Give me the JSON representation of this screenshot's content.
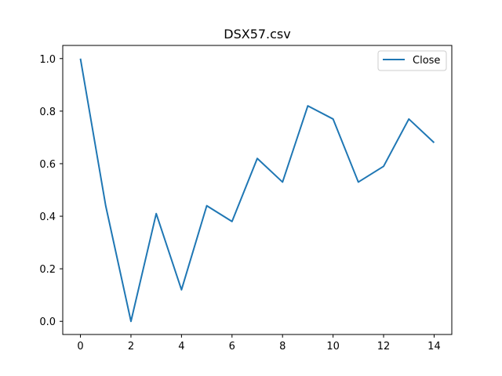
{
  "chart_data": {
    "type": "line",
    "title": "DSX57.csv",
    "xlabel": "",
    "ylabel": "",
    "x": [
      0,
      1,
      2,
      3,
      4,
      5,
      6,
      7,
      8,
      9,
      10,
      11,
      12,
      13,
      14
    ],
    "series": [
      {
        "name": "Close",
        "color": "#1f77b4",
        "values": [
          1.0,
          0.44,
          0.0,
          0.41,
          0.12,
          0.44,
          0.38,
          0.62,
          0.53,
          0.82,
          0.77,
          0.53,
          0.59,
          0.77,
          0.68
        ]
      }
    ],
    "xlim": [
      -0.7,
      14.7
    ],
    "ylim": [
      -0.05,
      1.05
    ],
    "xticks": [
      0,
      2,
      4,
      6,
      8,
      10,
      12,
      14
    ],
    "xtick_labels": [
      "0",
      "2",
      "4",
      "6",
      "8",
      "10",
      "12",
      "14"
    ],
    "yticks": [
      0.0,
      0.2,
      0.4,
      0.6,
      0.8,
      1.0
    ],
    "ytick_labels": [
      "0.0",
      "0.2",
      "0.4",
      "0.6",
      "0.8",
      "1.0"
    ],
    "grid": false,
    "legend": "top-right"
  }
}
